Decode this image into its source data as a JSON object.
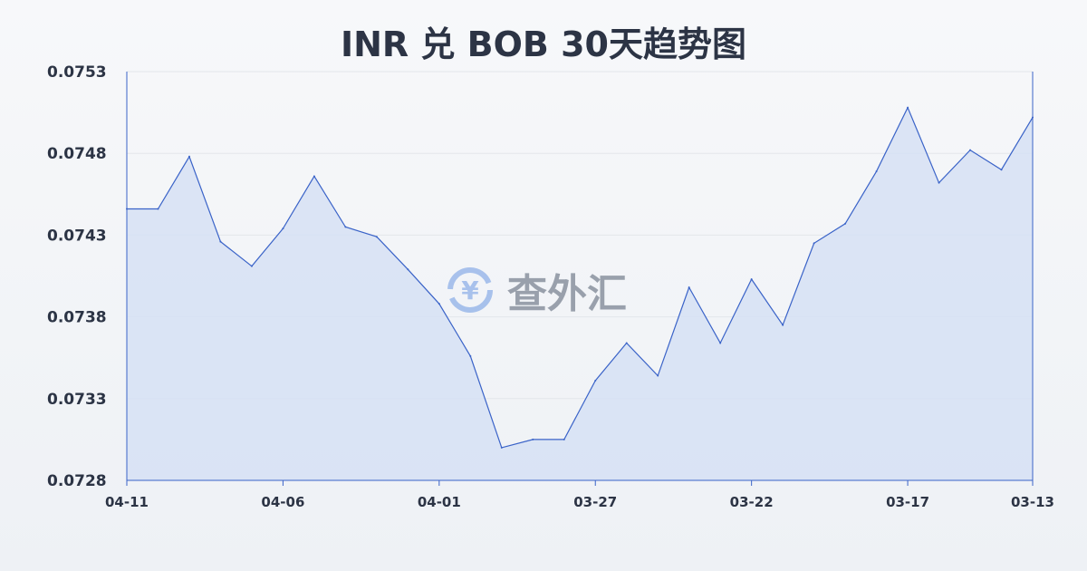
{
  "title": "INR 兑 BOB 30天趋势图",
  "watermark": "查外汇",
  "colors": {
    "line": "#3a63c8",
    "fill": "#d6e0f5",
    "grid": "#e3e6ea",
    "text": "#2c3445"
  },
  "chart_data": {
    "type": "area",
    "title": "INR 兑 BOB 30天趋势图",
    "xlabel": "",
    "ylabel": "",
    "ylim": [
      0.0728,
      0.0753
    ],
    "y_ticks": [
      "0.0753",
      "0.0748",
      "0.0743",
      "0.0738",
      "0.0733",
      "0.0728"
    ],
    "x_tick_labels": [
      "04-11",
      "04-06",
      "04-01",
      "03-27",
      "03-22",
      "03-17",
      "03-13"
    ],
    "grid": true,
    "x": [
      "04-11",
      "04-10",
      "04-09",
      "04-08",
      "04-07",
      "04-06",
      "04-05",
      "04-04",
      "04-03",
      "04-02",
      "04-01",
      "03-31",
      "03-30",
      "03-29",
      "03-28",
      "03-27",
      "03-26",
      "03-25",
      "03-24",
      "03-23",
      "03-22",
      "03-21",
      "03-20",
      "03-19",
      "03-18",
      "03-17",
      "03-16",
      "03-15",
      "03-14",
      "03-13"
    ],
    "values": [
      0.07446,
      0.07446,
      0.07478,
      0.07426,
      0.07411,
      0.07434,
      0.07466,
      0.07435,
      0.07429,
      0.07409,
      0.07388,
      0.07356,
      0.073,
      0.07305,
      0.07305,
      0.07341,
      0.07364,
      0.07344,
      0.07398,
      0.07364,
      0.07403,
      0.07375,
      0.07425,
      0.07437,
      0.07469,
      0.07508,
      0.07462,
      0.07482,
      0.0747,
      0.07502
    ]
  }
}
